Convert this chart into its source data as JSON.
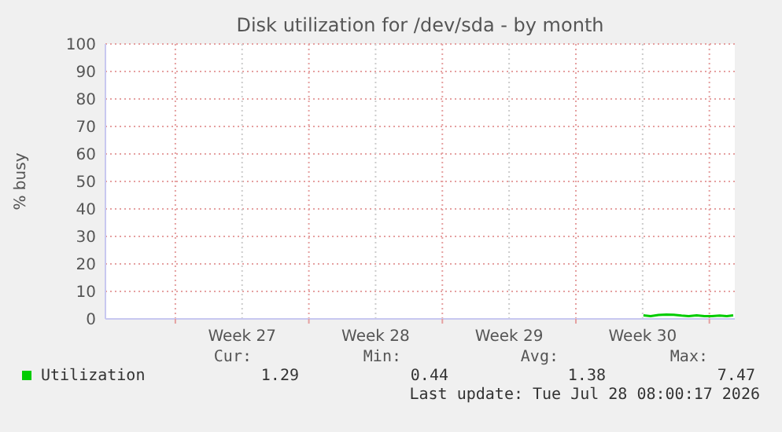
{
  "chart_data": {
    "type": "line",
    "title": "Disk utilization for /dev/sda - by month",
    "ylabel": "% busy",
    "x": [
      "2026-07-23T13:00",
      "2026-07-23T22:00",
      "2026-07-24T08:00",
      "2026-07-24T18:00",
      "2026-07-25T03:00",
      "2026-07-25T13:00",
      "2026-07-25T22:00",
      "2026-07-26T08:00",
      "2026-07-26T18:00",
      "2026-07-27T03:00",
      "2026-07-27T13:00",
      "2026-07-27T22:00",
      "2026-07-28T06:00"
    ],
    "series": [
      {
        "name": "Utilization",
        "color": "#00cc00",
        "values": [
          1.3,
          1.0,
          1.4,
          1.6,
          1.5,
          1.2,
          1.0,
          1.3,
          1.0,
          1.0,
          1.2,
          1.0,
          1.3
        ]
      }
    ],
    "xlim": [
      "2026-06-25T08:00",
      "2026-07-28T08:00"
    ],
    "xticks": [
      {
        "value": "2026-06-29",
        "label": null
      },
      {
        "value": "2026-07-02T12:00",
        "label": "Week 27"
      },
      {
        "value": "2026-07-06",
        "label": null
      },
      {
        "value": "2026-07-09T12:00",
        "label": "Week 28"
      },
      {
        "value": "2026-07-13",
        "label": null
      },
      {
        "value": "2026-07-16T12:00",
        "label": "Week 29"
      },
      {
        "value": "2026-07-20",
        "label": null
      },
      {
        "value": "2026-07-23T12:00",
        "label": "Week 30"
      },
      {
        "value": "2026-07-27",
        "label": null
      }
    ],
    "ylim": [
      0,
      100
    ],
    "yticks": [
      0,
      10,
      20,
      30,
      40,
      50,
      60,
      70,
      80,
      90,
      100
    ],
    "grid": true,
    "legend": "bottom left",
    "line_style": "solid",
    "marker": "none",
    "annotations": [
      "Cur:",
      "Min:",
      "Avg:",
      "Max:",
      "1.29",
      "0.44",
      "1.38",
      "7.47",
      "Last update: Tue Jul 28 08:00:17 2026"
    ]
  }
}
